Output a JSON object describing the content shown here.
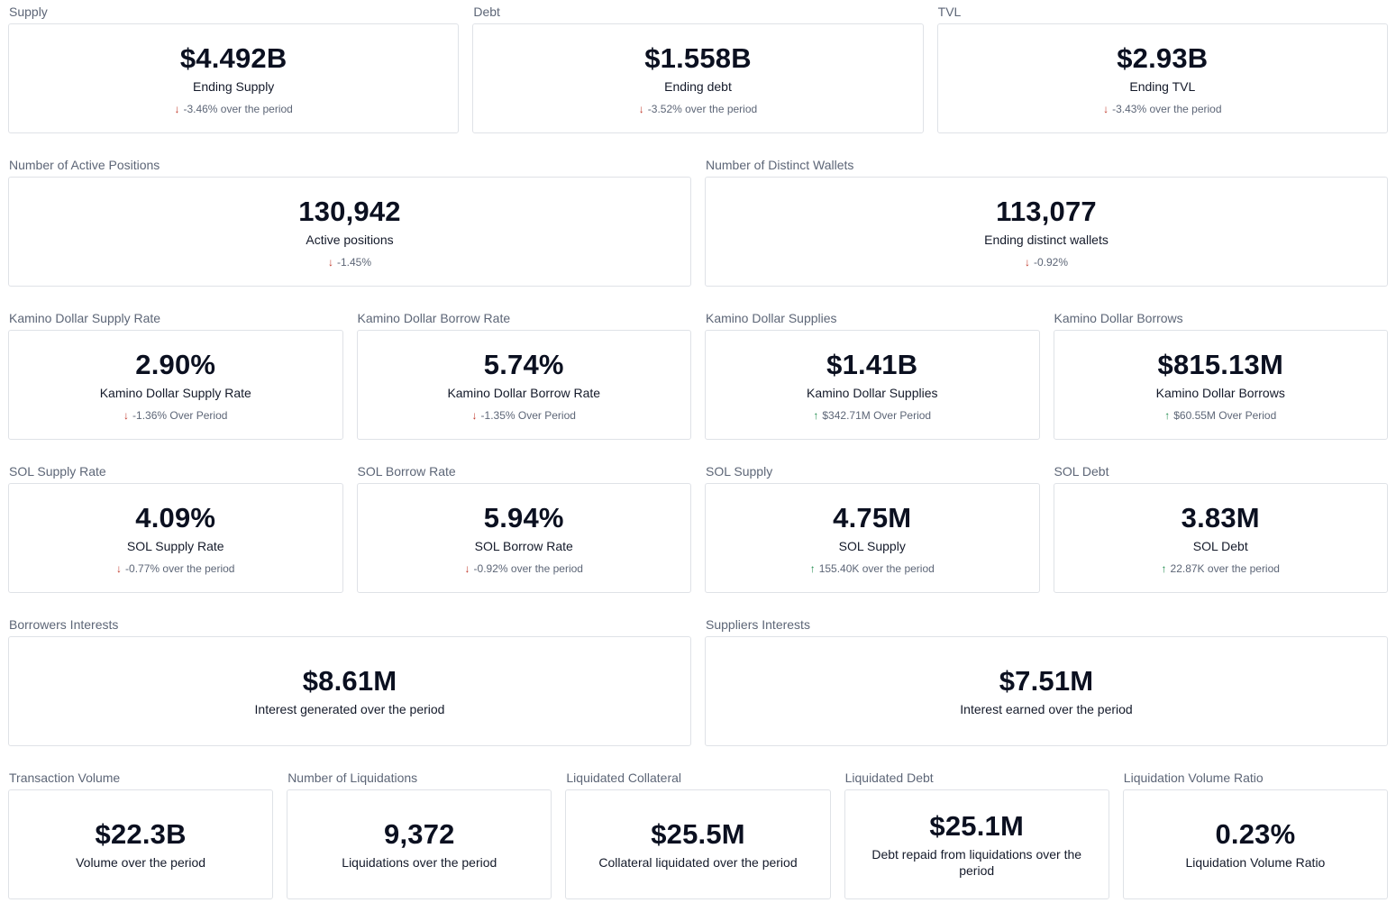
{
  "row1": [
    {
      "title": "Supply",
      "value": "$4.492B",
      "label": "Ending Supply",
      "delta": "-3.46% over the period",
      "direction": "down"
    },
    {
      "title": "Debt",
      "value": "$1.558B",
      "label": "Ending debt",
      "delta": "-3.52% over the period",
      "direction": "down"
    },
    {
      "title": "TVL",
      "value": "$2.93B",
      "label": "Ending TVL",
      "delta": "-3.43% over the period",
      "direction": "down"
    }
  ],
  "row2": [
    {
      "title": "Number of Active Positions",
      "value": "130,942",
      "label": "Active positions",
      "delta": "-1.45%",
      "direction": "down"
    },
    {
      "title": "Number of Distinct Wallets",
      "value": "113,077",
      "label": "Ending distinct wallets",
      "delta": "-0.92%",
      "direction": "down"
    }
  ],
  "row3": [
    {
      "title": "Kamino Dollar Supply Rate",
      "value": "2.90%",
      "label": "Kamino Dollar Supply Rate",
      "delta": "-1.36% Over Period",
      "direction": "down"
    },
    {
      "title": "Kamino Dollar Borrow Rate",
      "value": "5.74%",
      "label": "Kamino Dollar Borrow Rate",
      "delta": "-1.35% Over Period",
      "direction": "down"
    },
    {
      "title": "Kamino Dollar Supplies",
      "value": "$1.41B",
      "label": "Kamino Dollar Supplies",
      "delta": "$342.71M Over Period",
      "direction": "up"
    },
    {
      "title": "Kamino Dollar Borrows",
      "value": "$815.13M",
      "label": "Kamino Dollar Borrows",
      "delta": "$60.55M Over Period",
      "direction": "up"
    }
  ],
  "row4": [
    {
      "title": "SOL Supply Rate",
      "value": "4.09%",
      "label": "SOL Supply Rate",
      "delta": "-0.77% over the period",
      "direction": "down"
    },
    {
      "title": "SOL Borrow Rate",
      "value": "5.94%",
      "label": "SOL Borrow Rate",
      "delta": "-0.92% over the period",
      "direction": "down"
    },
    {
      "title": "SOL Supply",
      "value": "4.75M",
      "label": "SOL Supply",
      "delta": "155.40K over the period",
      "direction": "up"
    },
    {
      "title": "SOL Debt",
      "value": "3.83M",
      "label": "SOL Debt",
      "delta": "22.87K over the period",
      "direction": "up"
    }
  ],
  "row5": [
    {
      "title": "Borrowers Interests",
      "value": "$8.61M",
      "label": "Interest generated over the period"
    },
    {
      "title": "Suppliers Interests",
      "value": "$7.51M",
      "label": "Interest earned over the period"
    }
  ],
  "row6": [
    {
      "title": "Transaction Volume",
      "value": "$22.3B",
      "label": "Volume over the period"
    },
    {
      "title": "Number of Liquidations",
      "value": "9,372",
      "label": "Liquidations over the period"
    },
    {
      "title": "Liquidated Collateral",
      "value": "$25.5M",
      "label": "Collateral liquidated over the period"
    },
    {
      "title": "Liquidated Debt",
      "value": "$25.1M",
      "label": "Debt repaid from liquidations over the period"
    },
    {
      "title": "Liquidation Volume Ratio",
      "value": "0.23%",
      "label": "Liquidation Volume Ratio"
    }
  ],
  "icons": {
    "down": "arrow-down-icon",
    "up": "arrow-up-icon"
  },
  "colors": {
    "down": "#c0392b",
    "up": "#1e8a4c",
    "border": "#dfe2e7",
    "title": "#5d6677"
  }
}
